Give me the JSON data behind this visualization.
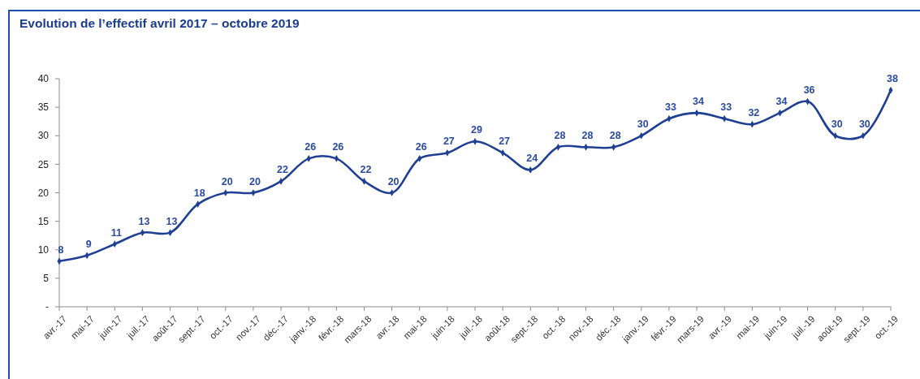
{
  "chart_data": {
    "type": "line",
    "title": "Evolution de l’effectif avril 2017 – octobre 2019",
    "categories": [
      "avr.-17",
      "mai-17",
      "juin-17",
      "juil.-17",
      "août-17",
      "sept.-17",
      "oct.-17",
      "nov.-17",
      "déc.-17",
      "janv.-18",
      "févr.-18",
      "mars-18",
      "avr.-18",
      "mai-18",
      "juin-18",
      "juil.-18",
      "août-18",
      "sept.-18",
      "oct.-18",
      "nov.-18",
      "déc.-18",
      "janv.-19",
      "févr.-19",
      "mars-19",
      "avr.-19",
      "mai-19",
      "juin-19",
      "juil.-19",
      "août-19",
      "sept.-19",
      "oct.-19"
    ],
    "series": [
      {
        "color": "#1f3f94",
        "values": [
          8,
          9,
          11,
          13,
          13,
          18,
          20,
          20,
          22,
          26,
          26,
          22,
          20,
          26,
          27,
          29,
          27,
          24,
          28,
          28,
          28,
          30,
          33,
          34,
          33,
          32,
          34,
          36,
          30,
          30,
          38
        ]
      }
    ],
    "ylim": [
      0,
      40
    ],
    "yticks": [
      {
        "value": 0,
        "label": "-"
      },
      5,
      10,
      15,
      20,
      25,
      30,
      35,
      40
    ],
    "marker": "diamond",
    "line_style": "solid",
    "data_labels": true
  }
}
